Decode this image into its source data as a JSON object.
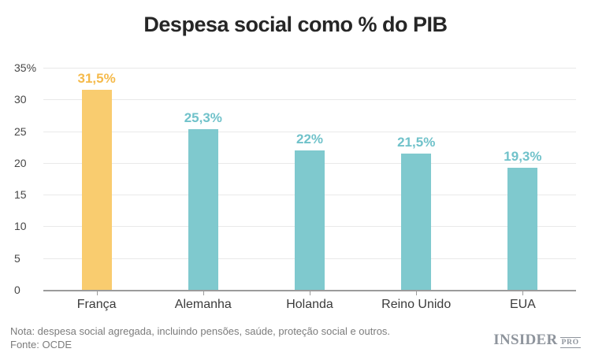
{
  "chart_data": {
    "type": "bar",
    "title": "Despesa social como % do PIB",
    "categories": [
      "França",
      "Alemanha",
      "Holanda",
      "Reino Unido",
      "EUA"
    ],
    "values": [
      31.5,
      25.3,
      22,
      21.5,
      19.3
    ],
    "value_labels": [
      "31,5%",
      "25,3%",
      "22%",
      "21,5%",
      "19,3%"
    ],
    "bar_colors": [
      "#F9CC6F",
      "#7FC9CE",
      "#7FC9CE",
      "#7FC9CE",
      "#7FC9CE"
    ],
    "value_label_colors": [
      "#F5BA4B",
      "#70C2CA",
      "#70C2CA",
      "#70C2CA",
      "#70C2CA"
    ],
    "highlight_index": 0,
    "xlabel": "",
    "ylabel": "",
    "ylim": [
      0,
      35
    ],
    "yticks": [
      {
        "value": 35,
        "label": "35%"
      },
      {
        "value": 30,
        "label": "30"
      },
      {
        "value": 25,
        "label": "25"
      },
      {
        "value": 20,
        "label": "20"
      },
      {
        "value": 15,
        "label": "15"
      },
      {
        "value": 10,
        "label": "10"
      },
      {
        "value": 5,
        "label": "5"
      },
      {
        "value": 0,
        "label": "0"
      }
    ],
    "grid": true,
    "legend": false
  },
  "footer": {
    "note": "Nota: despesa social agregada, incluindo pensões, saúde, proteção social e outros.",
    "source": "Fonte: OCDE",
    "logo": {
      "main": "INSIDER",
      "sub": "PRO"
    }
  },
  "colors": {
    "highlight_bar": "#F9CC6F",
    "highlight_value_label": "#F5BA4B",
    "default_bar": "#7FC9CE",
    "default_value_label": "#70C2CA",
    "gridline": "#E9E9E9",
    "axis_line": "#9B9B9B",
    "title_text": "#262626",
    "axis_text": "#474747",
    "category_text": "#3B3B3B",
    "footer_text": "#7C7C7C",
    "logo_text": "#8E949C"
  }
}
